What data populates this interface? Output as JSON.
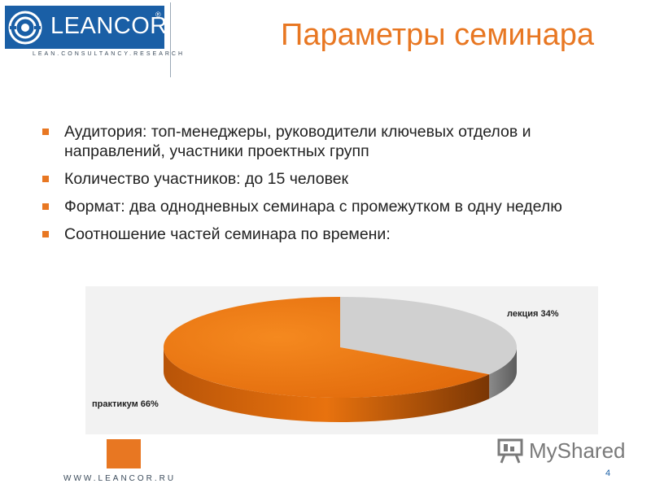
{
  "logo": {
    "word": "LEANCOR",
    "reg": "®",
    "tagline": "LEAN.CONSULTANCY.RESEARCH",
    "emblem_icon": "leancor-emblem-icon"
  },
  "title": "Параметры семинара",
  "bullets": [
    "Аудитория: топ-менеджеры, руководители ключевых отделов и направлений, участники проектных групп",
    "Количество участников: до 15 человек",
    "Формат: два однодневных семинара с промежутком в одну неделю",
    "Соотношение частей семинара по времени:"
  ],
  "chart_data": {
    "type": "pie",
    "title": "",
    "slices": [
      {
        "label": "лекция 34%",
        "value": 34,
        "color": "#d0d0d0"
      },
      {
        "label": "практикум 66%",
        "value": 66,
        "color": "#e8720e"
      }
    ]
  },
  "footer": {
    "url": "WWW.LEANCOR.RU",
    "page": "4"
  },
  "watermark": {
    "text": "MyShared",
    "icon": "presentation-board-icon"
  },
  "colors": {
    "accent": "#e87722",
    "brand_blue": "#1a5fa6"
  }
}
